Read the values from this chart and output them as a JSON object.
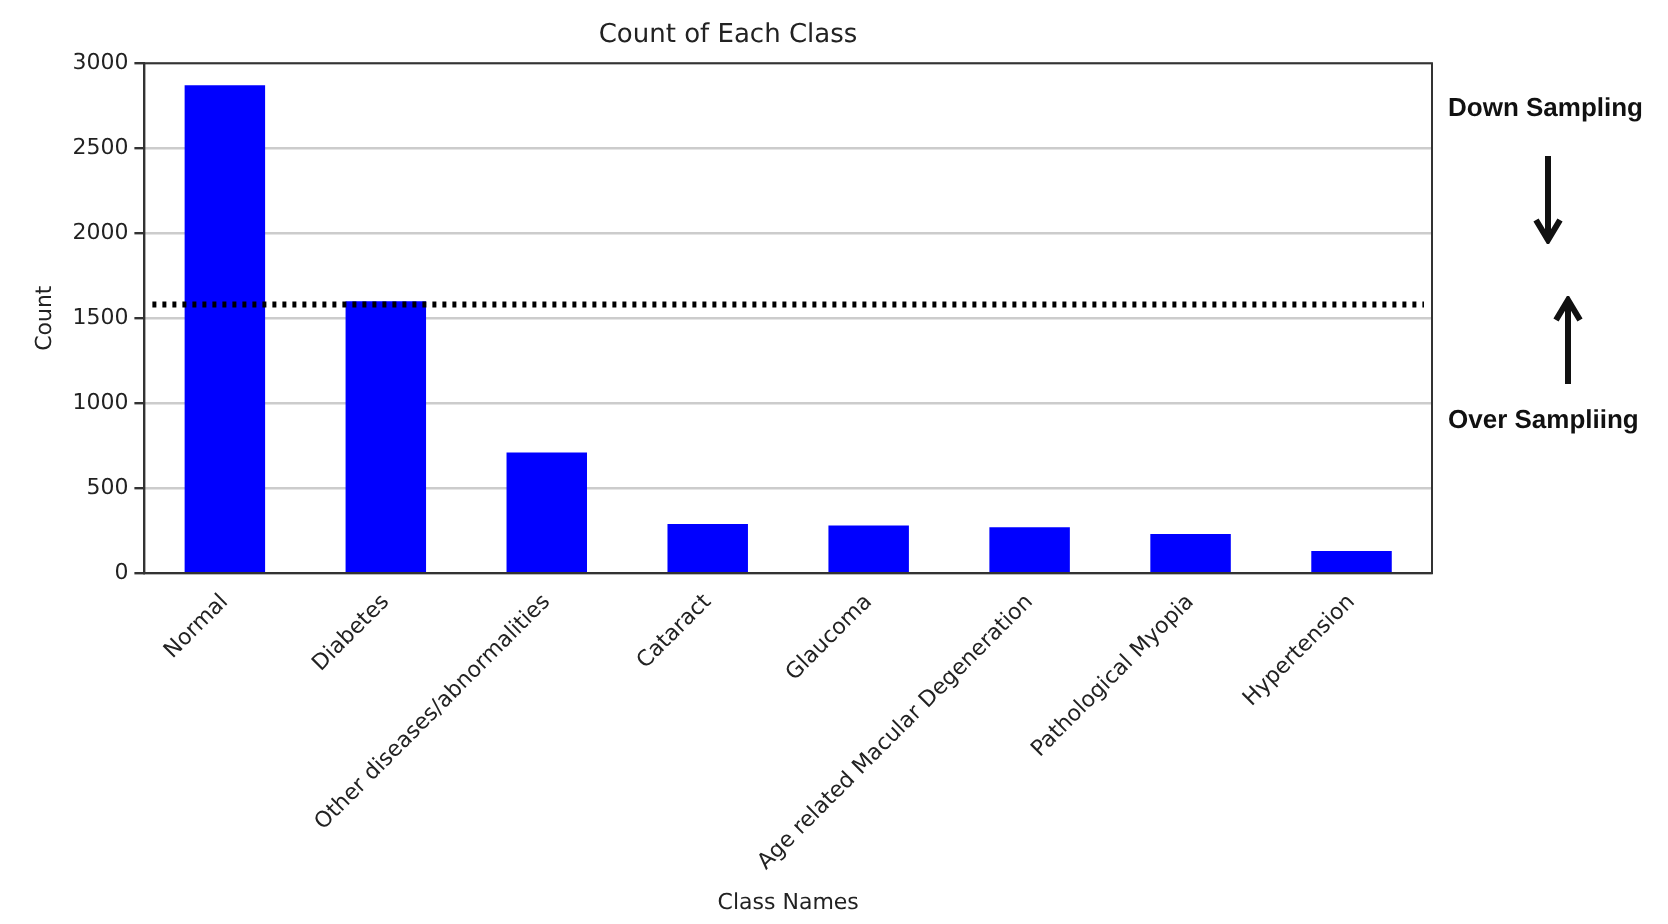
{
  "chart_data": {
    "type": "bar",
    "title": "Count of Each Class",
    "xlabel": "Class Names",
    "ylabel": "Count",
    "categories": [
      "Normal",
      "Diabetes",
      "Other diseases/abnormalities",
      "Cataract",
      "Glaucoma",
      "Age related Macular Degeneration",
      "Pathological Myopia",
      "Hypertension"
    ],
    "values": [
      2870,
      1600,
      710,
      290,
      280,
      270,
      230,
      130
    ],
    "color": "#0000ff",
    "ylim": [
      0,
      3000
    ],
    "yticks": [
      0,
      500,
      1000,
      1500,
      2000,
      2500,
      3000
    ],
    "grid": "y",
    "ref_lines": [
      {
        "axis": "y",
        "value": 1580,
        "color": "#000000",
        "line_style": "dotted"
      }
    ],
    "annotations": [
      "Down Sampling",
      "Over Sampliing"
    ]
  }
}
